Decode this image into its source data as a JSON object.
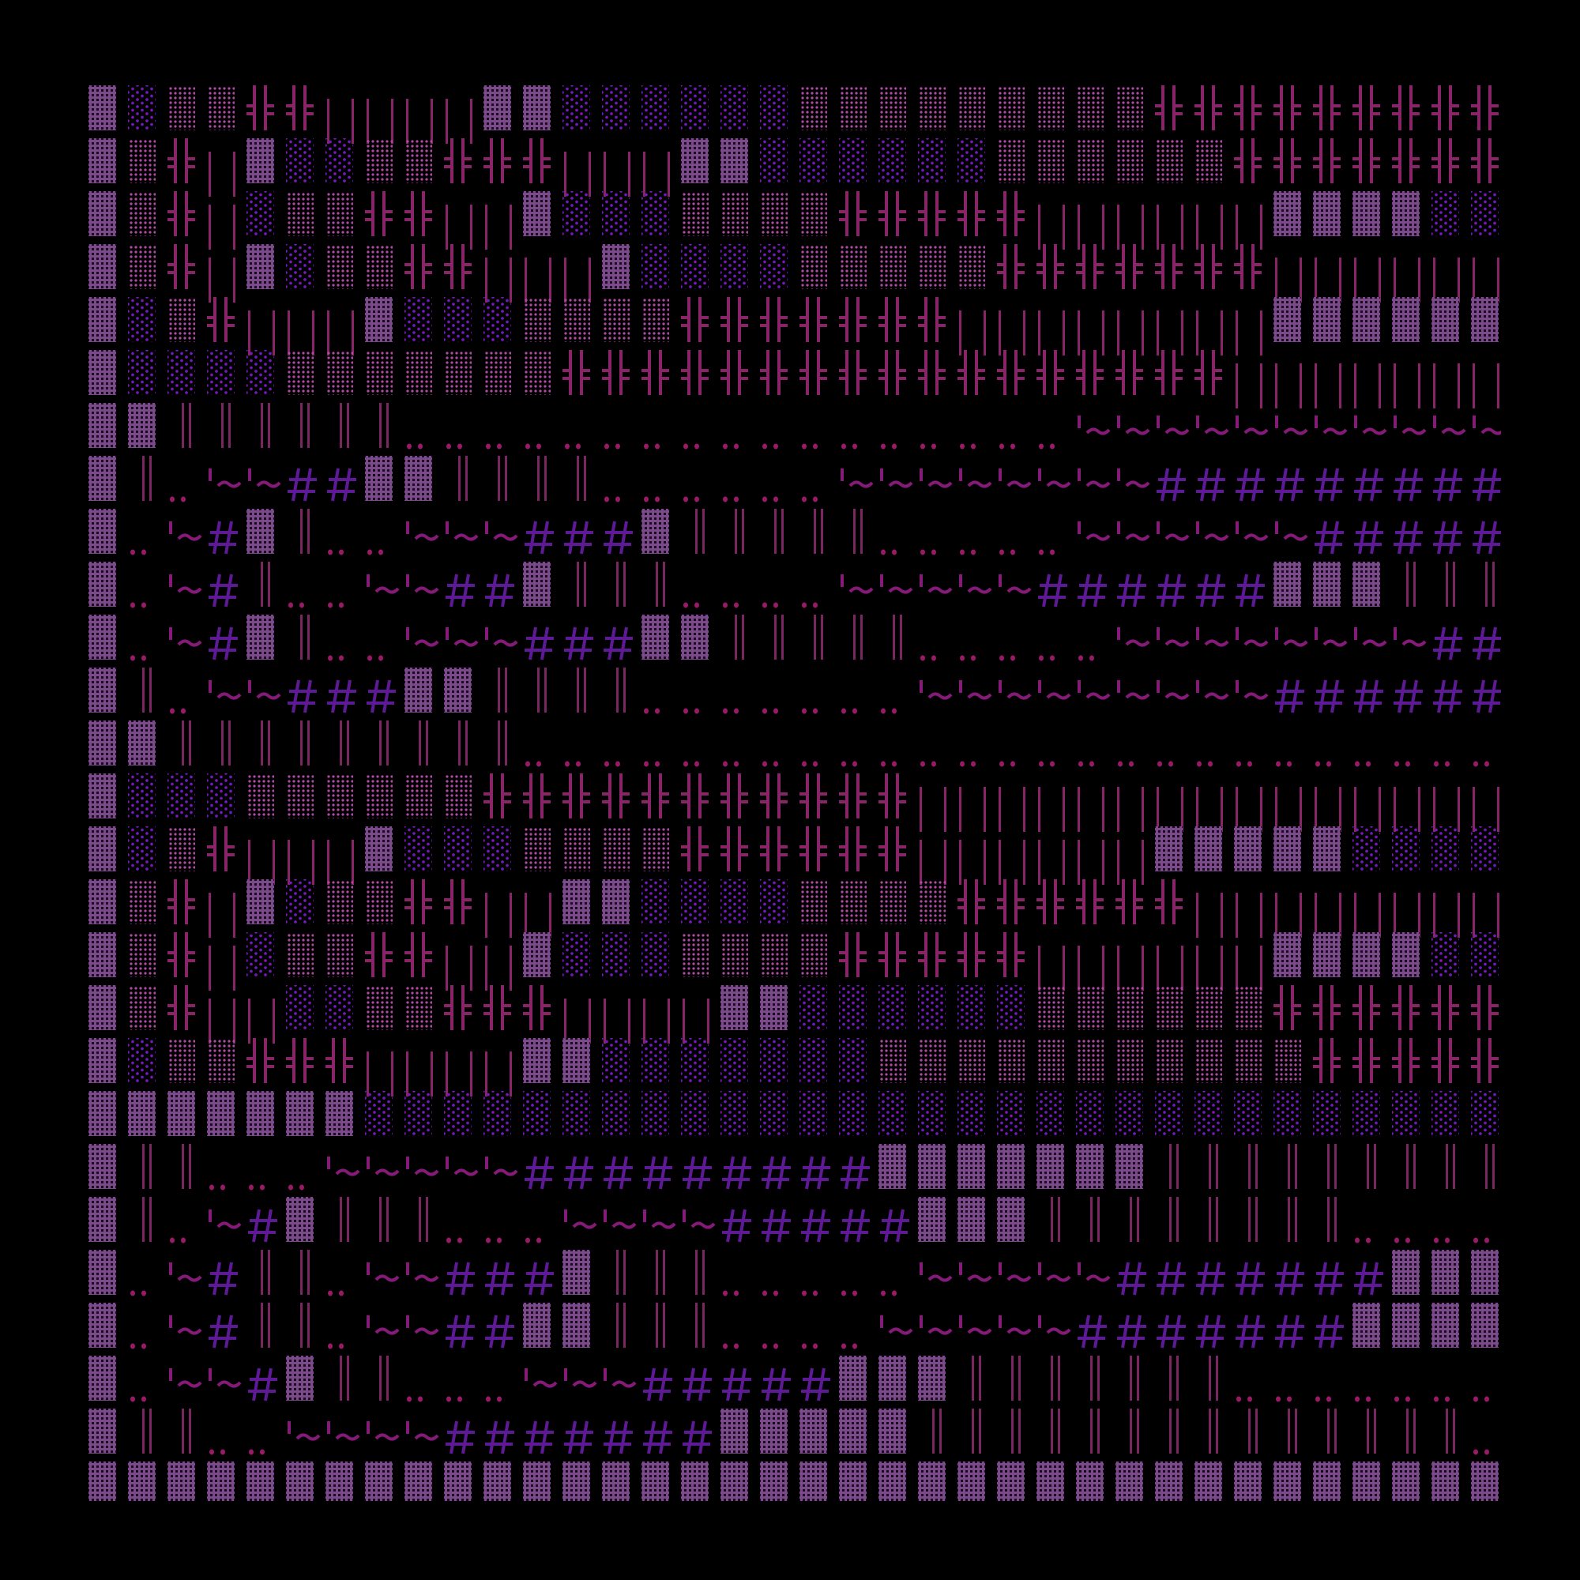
{
  "colors": {
    "background": "#000000",
    "dark_shade": "#7b4a8b",
    "light_shade": "#7418c0",
    "medium_shade": "#b04aa6",
    "double_cross": "#8a2468",
    "vertical_bar": "#8a2468",
    "double_bar": "#7a2660",
    "dots": "#9a1a68",
    "tilde": "#861a78",
    "hash": "#5e1a96"
  },
  "rows": [
    "▓░▒▒╬╬││││▓▓░░░░░░▒▒▒▒▒▒▒▒▒╬╬╬╬╬╬╬╬╬╬",
    "▓▒╬│▓░░▒▒╬╬╬│││▓▓░░░░░░▒▒▒▒▒▒╬╬╬╬╬╬╬╬",
    "▓▒╬│░▒▒╬╬││▓░░░▒▒▒▒╬╬╬╬╬││││││▓▓▓▓░░░",
    "▓▒╬│▓░▒▒╬╬│││▓░░░░▒▒▒▒▒╬╬╬╬╬╬╬│││││││",
    "▓░▒╬│││▓░░░▒▒▒▒╬╬╬╬╬╬╬││││││││▓▓▓▓▓▓░",
    "▓░░░░▒▒▒▒▒▒▒╬╬╬╬╬╬╬╬╬╬╬╬╬╬╬╬╬│││││││",
    "▓▓‖‖‖‖‖‖‥‥‥‥‥‥‥‥‥‥‥‥‥‥‥‥‥~~~~~~~~~~~~",
    "▓‖‥~~##▓▓‖‖‖‖‥‥‥‥‥‥~~~~~~~~##########",
    "▓‥~#▓‖‥‥~~~###▓‖‖‖‖‖‥‥‥‥‥~~~~~~######",
    "▓‥~#‖‥‥~~##▓‖‖‖‥‥‥‥~~~~~######▓▓▓‖‖‖ ",
    "▓‥~#▓‖‥‥~~~###▓▓‖‖‖‖‖‥‥‥‥‥~~~~~~~~###",
    "▓‖‥~~###▓▓‖‖‖‖‥‥‥‥‥‥‥~~~~~~~~~#######",
    "▓▓‖‖‖‖‖‖‖‖‖‥‥‥‥‥‥‥‥‥‥‥‥‥‥‥‥‥‥‥‥‥‥‥‥‥‥",
    "▓░░░▒▒▒▒▒▒╬╬╬╬╬╬╬╬╬╬╬││││││││││││││││",
    "▓░▒╬│││▓░░░▒▒▒▒╬╬╬╬╬╬││││││▓▓▓▓▓░░░░░",
    "▓▒╬│▓░▒▒╬╬││▓▓░░░░▒▒▒▒╬╬╬╬╬╬││││││││▒",
    "▓▒╬│░▒▒╬╬││▓░░░▒▒▒▒╬╬╬╬╬││││││▓▓▓▓░░░",
    "▓▒╬││░░▒▒╬╬╬││││▓▓░░░░░░▒▒▒▒▒▒╬╬╬╬╬╬╬",
    "▓░▒▒╬╬╬││││▓▓░░░░░░░▒▒▒▒▒▒▒▒▒▒▒╬╬╬╬╬╬",
    "▓▓▓▓▓▓▓░░░░░░░░░░░░░░░░░░░░░░░░░░░░░░",
    "▓‖‖‥‥‥~~~~~#########▓▓▓▓▓▓▓‖‖‖‖‖‖‖‖‖ ",
    "▓‖‥~#▓‖‖‖‥‥‥~~~~#####▓▓▓‖‖‖‖‖‖‖‖‥‥‥‥‥",
    "▓‥~#‖‖‥~~###▓‖‖‖‥‥‥‥‥~~~~~#######▓▓▓▒",
    "▓‥~#‖‖‥~~##▓▓‖‖‖‥‥‥‥~~~~~#######▓▓▓▓ ",
    "▓‥~~#▓‖‖‥‥‥~~~#####▓▓▓‖‖‖‖‖‖‖‥‥‥‥‥‥‥‥",
    "▓‖‖‥‥~~~~#######▓▓▓▓▓‖‖‖‖‖‖‖‖‖‖‖‖‖‖‥‥",
    "▓▓▓▓▓▓▓▓▓▓▓▓▓▓▓▓▓▓▓▓▓▓▓▓▓▓▓▓▓▓▓▓▓▓▓▓▓"
  ]
}
